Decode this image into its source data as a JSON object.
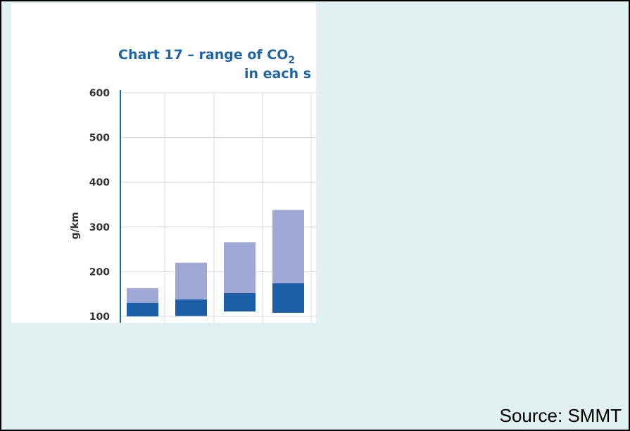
{
  "source": "Source: SMMT",
  "colors": {
    "background": "#e1f0f1",
    "frame_border": "#000000",
    "title": "#1f64a8",
    "axis_line": "#1f64a8",
    "gridline": "#d3d8ea",
    "text": "#333333",
    "bar_range": "#a0a8d6",
    "bar_base": "#1a5fa8"
  },
  "chart_data": {
    "type": "bar",
    "title_line1_prefix": "Chart 17 – range of CO",
    "title_subscript": "2",
    "title_line2": "in each s",
    "ylabel": "g/km",
    "xlabel": "",
    "yticks": [
      "100",
      "200",
      "300",
      "400",
      "500",
      "600"
    ],
    "ylim": [
      100,
      600
    ],
    "grid": true,
    "bars": [
      {
        "min": 100,
        "mid": 130,
        "max": 163
      },
      {
        "min": 101,
        "mid": 138,
        "max": 220
      },
      {
        "min": 111,
        "mid": 152,
        "max": 266
      },
      {
        "min": 108,
        "mid": 174,
        "max": 338
      }
    ]
  }
}
